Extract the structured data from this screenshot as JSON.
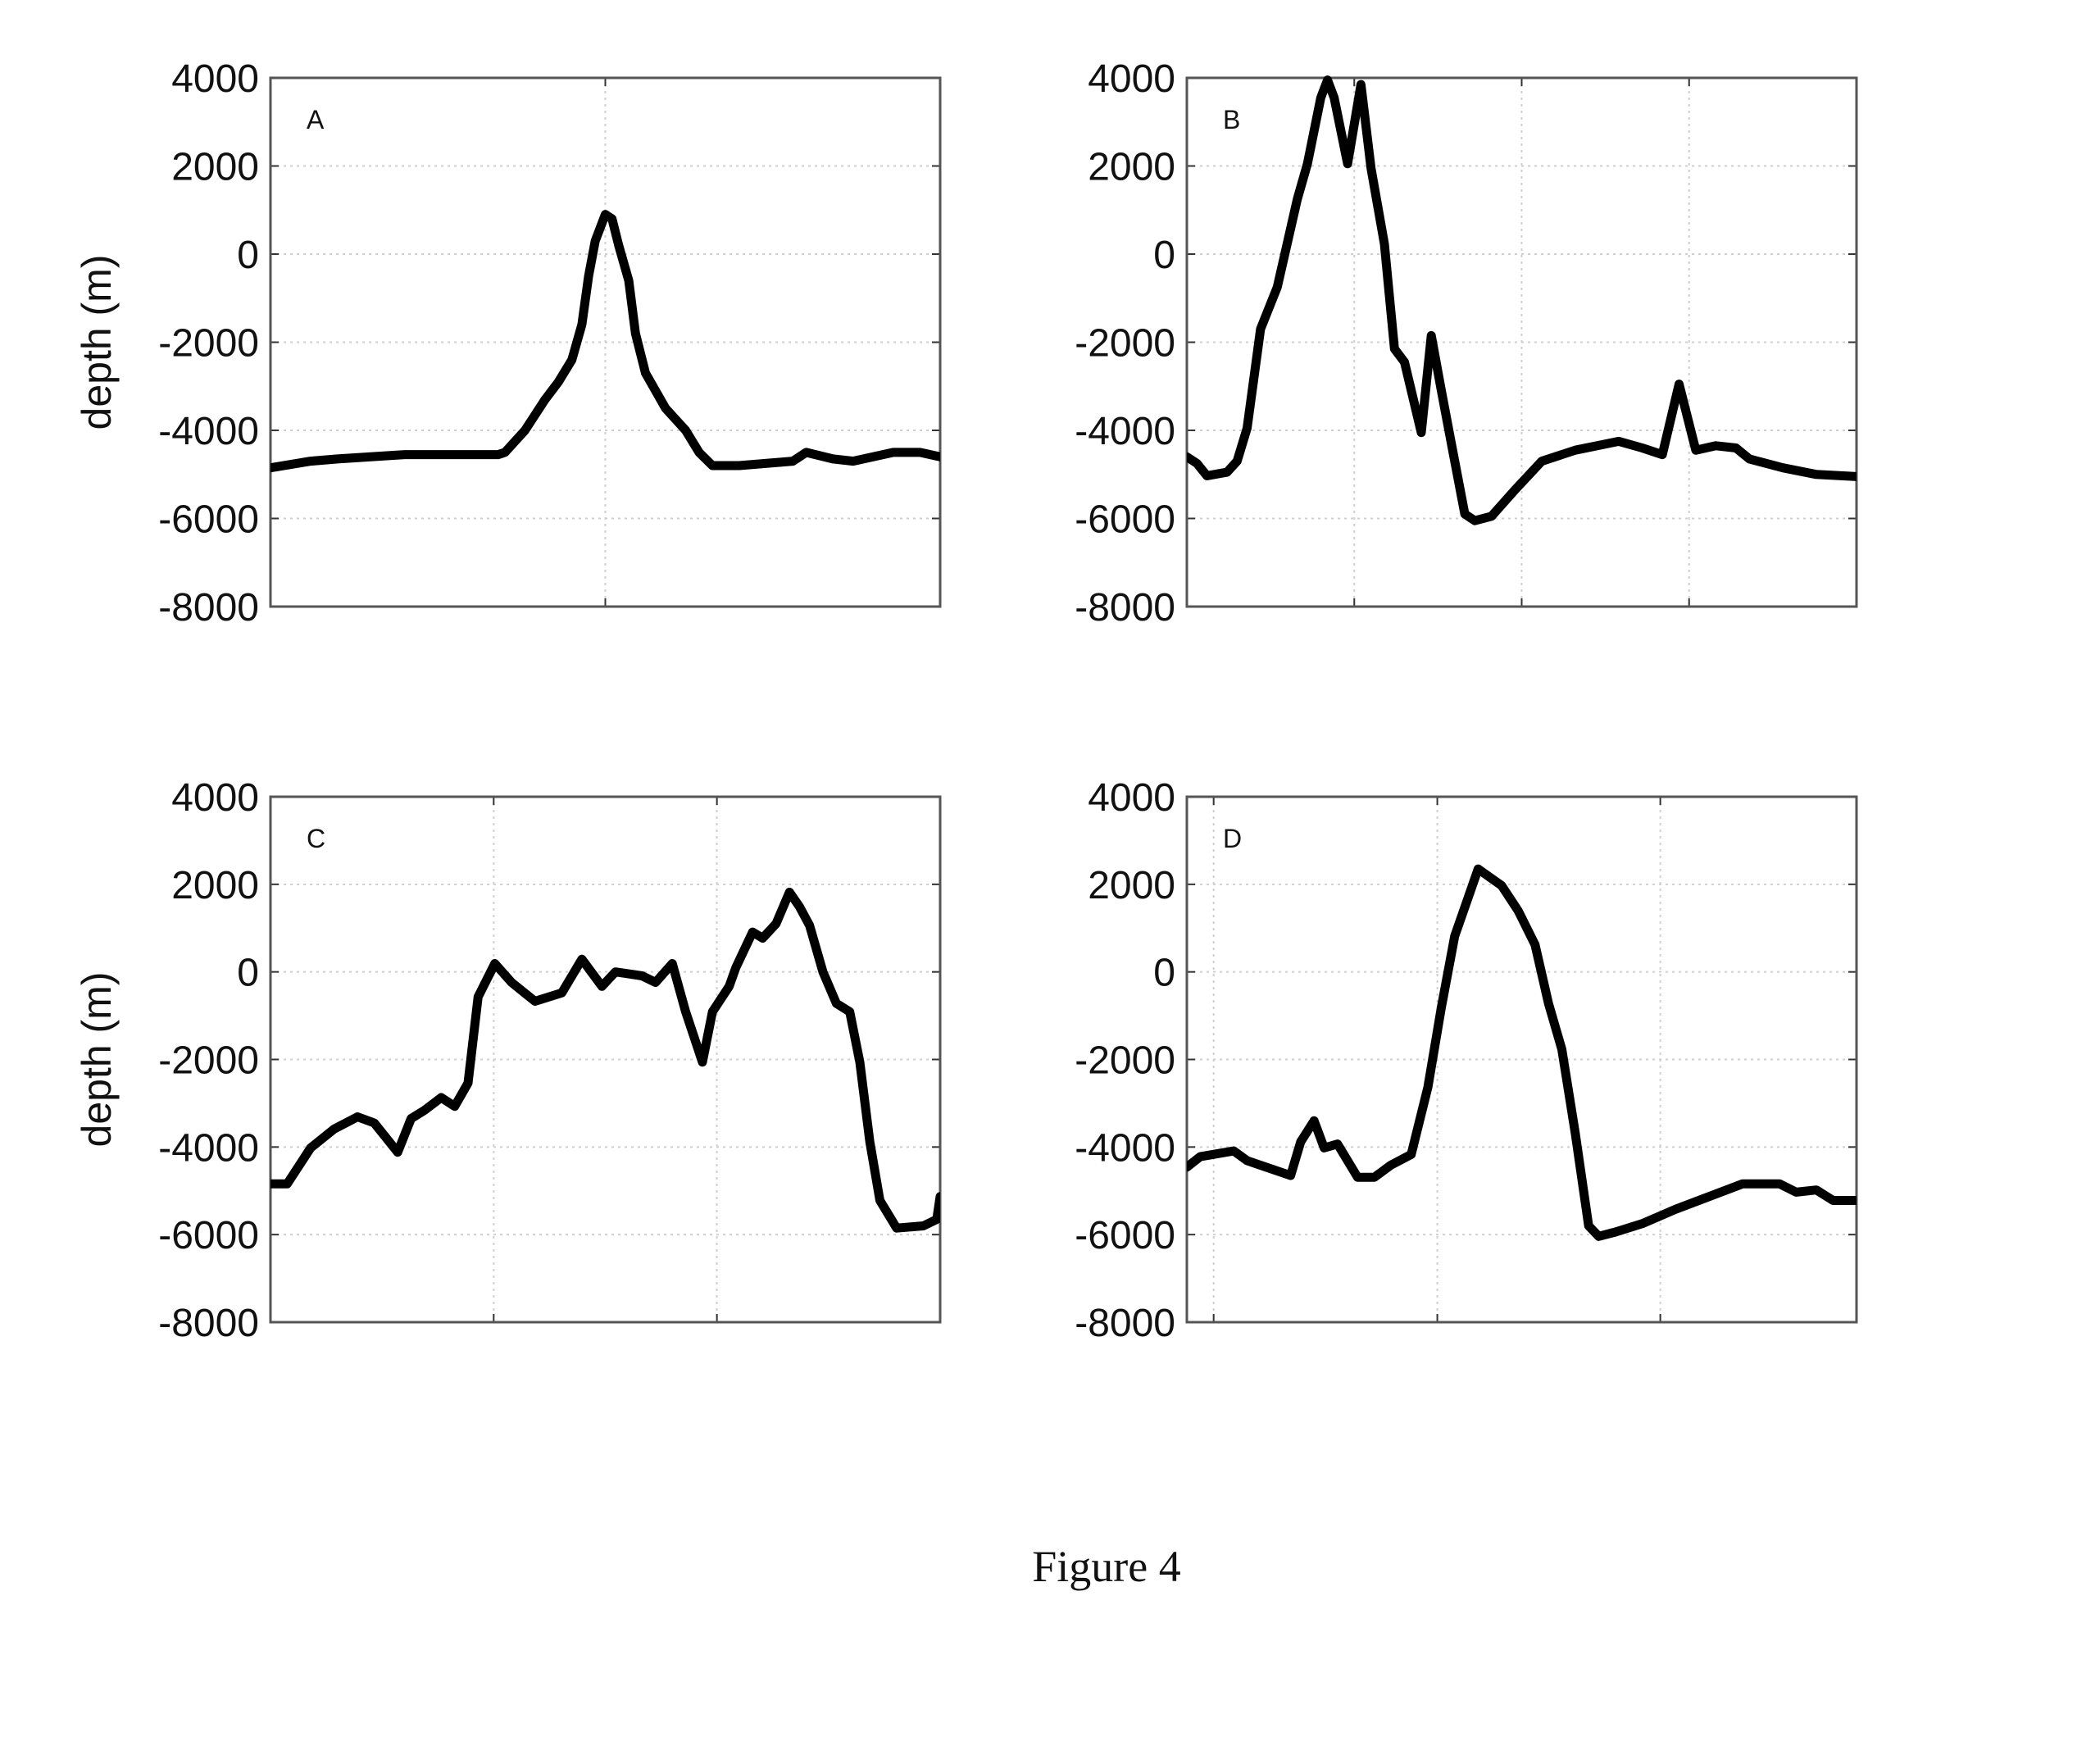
{
  "caption": "Figure 4",
  "chart_data": [
    {
      "type": "line",
      "panel_label": "A",
      "ylabel": "depth (m)",
      "ylim": [
        -8000,
        4000
      ],
      "yticks": [
        "4000",
        "2000",
        "0",
        "-2000",
        "-4000",
        "-6000",
        "-8000"
      ],
      "grid": true,
      "line_color": "#000000",
      "x": [
        0,
        6,
        10,
        20,
        30,
        34,
        35,
        38,
        41,
        43,
        45,
        46.5,
        47.5,
        48.5,
        50,
        51,
        52,
        53.5,
        54.5,
        56,
        59,
        62,
        64,
        66,
        70,
        78,
        80,
        84,
        87,
        90,
        93,
        97,
        100
      ],
      "values": [
        -4850,
        -4700,
        -4650,
        -4550,
        -4550,
        -4550,
        -4500,
        -4000,
        -3300,
        -2900,
        -2400,
        -1600,
        -500,
        300,
        900,
        800,
        200,
        -600,
        -1800,
        -2700,
        -3500,
        -4000,
        -4500,
        -4800,
        -4800,
        -4700,
        -4500,
        -4650,
        -4700,
        -4600,
        -4500,
        -4500,
        -4600
      ]
    },
    {
      "type": "line",
      "panel_label": "B",
      "ylabel": "",
      "ylim": [
        -8000,
        4000
      ],
      "yticks": [
        "4000",
        "2000",
        "0",
        "-2000",
        "-4000",
        "-6000",
        "-8000"
      ],
      "grid": true,
      "line_color": "#000000",
      "x": [
        0,
        1.5,
        3,
        6,
        7.5,
        9,
        11,
        13.5,
        16.5,
        18,
        20,
        21,
        22,
        24,
        26,
        27.5,
        29.5,
        31,
        32.5,
        35,
        36.5,
        38,
        39.5,
        41.5,
        43,
        45.5,
        49,
        53,
        58,
        64.5,
        68,
        71,
        73.5,
        76,
        79,
        82,
        84,
        89,
        94,
        100
      ],
      "values": [
        -4600,
        -4750,
        -5030,
        -4950,
        -4700,
        -3950,
        -1700,
        -750,
        1250,
        2050,
        3550,
        3950,
        3550,
        2050,
        3850,
        1950,
        230,
        -2150,
        -2450,
        -4050,
        -1850,
        -3100,
        -4300,
        -5900,
        -6050,
        -5950,
        -5350,
        -4700,
        -4450,
        -4250,
        -4400,
        -4550,
        -2950,
        -4450,
        -4350,
        -4400,
        -4650,
        -4850,
        -5000,
        -5050
      ]
    },
    {
      "type": "line",
      "panel_label": "C",
      "ylabel": "depth (m)",
      "ylim": [
        -8000,
        4000
      ],
      "yticks": [
        "4000",
        "2000",
        "0",
        "-2000",
        "-4000",
        "-6000",
        "-8000"
      ],
      "grid": true,
      "line_color": "#000000",
      "x": [
        0,
        2.5,
        6,
        9.5,
        13,
        15.5,
        19,
        21,
        23,
        25.5,
        27.5,
        29.5,
        31,
        33.5,
        36,
        39.5,
        43.5,
        46.5,
        49.5,
        51.5,
        55.5,
        57.5,
        60,
        62,
        64.5,
        66,
        68.5,
        69.5,
        72,
        73.5,
        75.5,
        77.5,
        79,
        80.5,
        82.5,
        84.5,
        86.5,
        88,
        89.5,
        91,
        93.5,
        97.5,
        99.5,
        100
      ],
      "values": [
        -4840,
        -4840,
        -4020,
        -3590,
        -3310,
        -3450,
        -4120,
        -3350,
        -3160,
        -2870,
        -3070,
        -2540,
        -570,
        190,
        -240,
        -670,
        -480,
        290,
        -330,
        0,
        -90,
        -240,
        190,
        -910,
        -2060,
        -910,
        -330,
        100,
        910,
        770,
        1100,
        1820,
        1490,
        1060,
        0,
        -720,
        -910,
        -2060,
        -3880,
        -5220,
        -5850,
        -5800,
        -5650,
        -5130
      ]
    },
    {
      "type": "line",
      "panel_label": "D",
      "ylabel": "",
      "ylim": [
        -8000,
        4000
      ],
      "yticks": [
        "4000",
        "2000",
        "0",
        "-2000",
        "-4000",
        "-6000",
        "-8000"
      ],
      "grid": true,
      "line_color": "#000000",
      "x": [
        0,
        2,
        7,
        9,
        15.5,
        17,
        19,
        20.5,
        22.5,
        25.5,
        28,
        30.5,
        33.5,
        36,
        38,
        40,
        43.5,
        47,
        49.5,
        52,
        54,
        56,
        58,
        60,
        61.5,
        64,
        68,
        73,
        78,
        83,
        88.5,
        91,
        94,
        96.5,
        100
      ],
      "values": [
        -4460,
        -4220,
        -4090,
        -4310,
        -4650,
        -3880,
        -3400,
        -4020,
        -3930,
        -4690,
        -4690,
        -4410,
        -4170,
        -2630,
        -810,
        820,
        2350,
        1970,
        1390,
        620,
        -720,
        -1770,
        -3690,
        -5800,
        -6040,
        -5940,
        -5750,
        -5420,
        -5130,
        -4840,
        -4840,
        -5030,
        -4980,
        -5220,
        -5220
      ]
    }
  ]
}
